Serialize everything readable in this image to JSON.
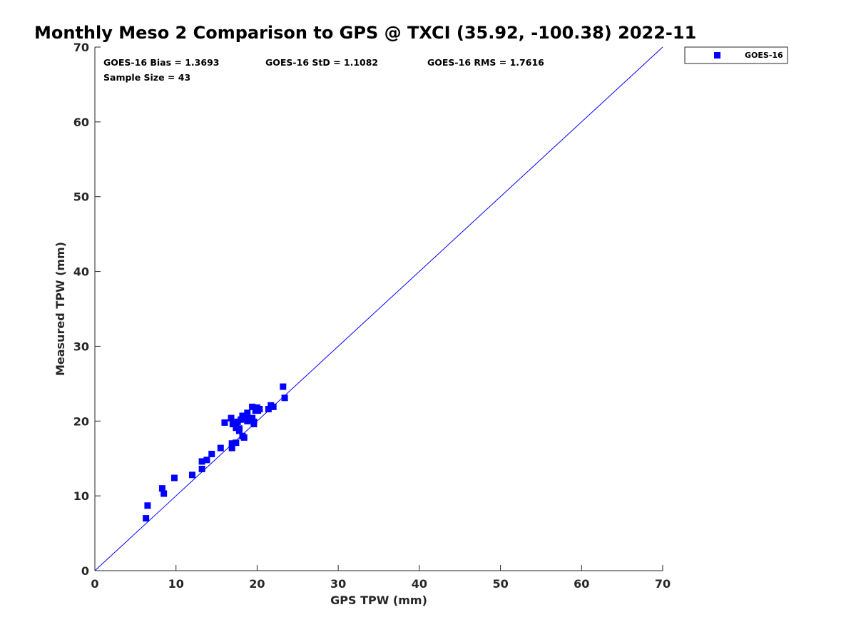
{
  "chart_data": {
    "type": "scatter",
    "title": "Monthly Meso 2 Comparison to GPS @ TXCI (35.92, -100.38) 2022-11",
    "xlabel": "GPS TPW (mm)",
    "ylabel": "Measured TPW (mm)",
    "xlim": [
      0,
      70
    ],
    "ylim": [
      0,
      70
    ],
    "xticks": [
      0,
      10,
      20,
      30,
      40,
      50,
      60,
      70
    ],
    "yticks": [
      0,
      10,
      20,
      30,
      40,
      50,
      60,
      70
    ],
    "grid": false,
    "legend_position": "top-right-outside",
    "reference_line": {
      "from": [
        0,
        0
      ],
      "to": [
        70,
        70
      ],
      "color": "#0000ff"
    },
    "stats": {
      "bias": "GOES-16 Bias = 1.3693",
      "std": "GOES-16 StD = 1.1082",
      "rms": "GOES-16 RMS = 1.7616",
      "sample_size": "Sample Size = 43"
    },
    "series": [
      {
        "name": "GOES-16",
        "color": "#0000ff",
        "marker": "square",
        "points": [
          [
            6.3,
            7.0
          ],
          [
            6.5,
            8.7
          ],
          [
            8.3,
            11.0
          ],
          [
            8.5,
            10.3
          ],
          [
            9.8,
            12.4
          ],
          [
            12.0,
            12.8
          ],
          [
            13.2,
            14.6
          ],
          [
            13.2,
            13.6
          ],
          [
            13.8,
            14.8
          ],
          [
            14.4,
            15.6
          ],
          [
            15.5,
            16.4
          ],
          [
            16.0,
            19.8
          ],
          [
            16.8,
            20.4
          ],
          [
            16.9,
            16.4
          ],
          [
            16.9,
            17.0
          ],
          [
            17.0,
            19.6
          ],
          [
            17.4,
            19.1
          ],
          [
            17.4,
            17.1
          ],
          [
            17.6,
            19.9
          ],
          [
            17.8,
            18.7
          ],
          [
            17.8,
            19.0
          ],
          [
            18.0,
            20.2
          ],
          [
            18.2,
            20.7
          ],
          [
            18.2,
            18.0
          ],
          [
            18.4,
            17.8
          ],
          [
            18.6,
            20.5
          ],
          [
            18.8,
            20.0
          ],
          [
            18.8,
            21.1
          ],
          [
            19.2,
            20.2
          ],
          [
            19.4,
            21.9
          ],
          [
            19.4,
            20.4
          ],
          [
            19.6,
            19.9
          ],
          [
            19.6,
            19.6
          ],
          [
            19.8,
            21.4
          ],
          [
            20.0,
            21.8
          ],
          [
            20.3,
            21.6
          ],
          [
            20.1,
            21.4
          ],
          [
            21.4,
            21.6
          ],
          [
            21.7,
            22.1
          ],
          [
            22.0,
            21.9
          ],
          [
            23.2,
            24.6
          ],
          [
            23.4,
            23.1
          ],
          [
            18.5,
            20.3
          ]
        ]
      }
    ]
  }
}
